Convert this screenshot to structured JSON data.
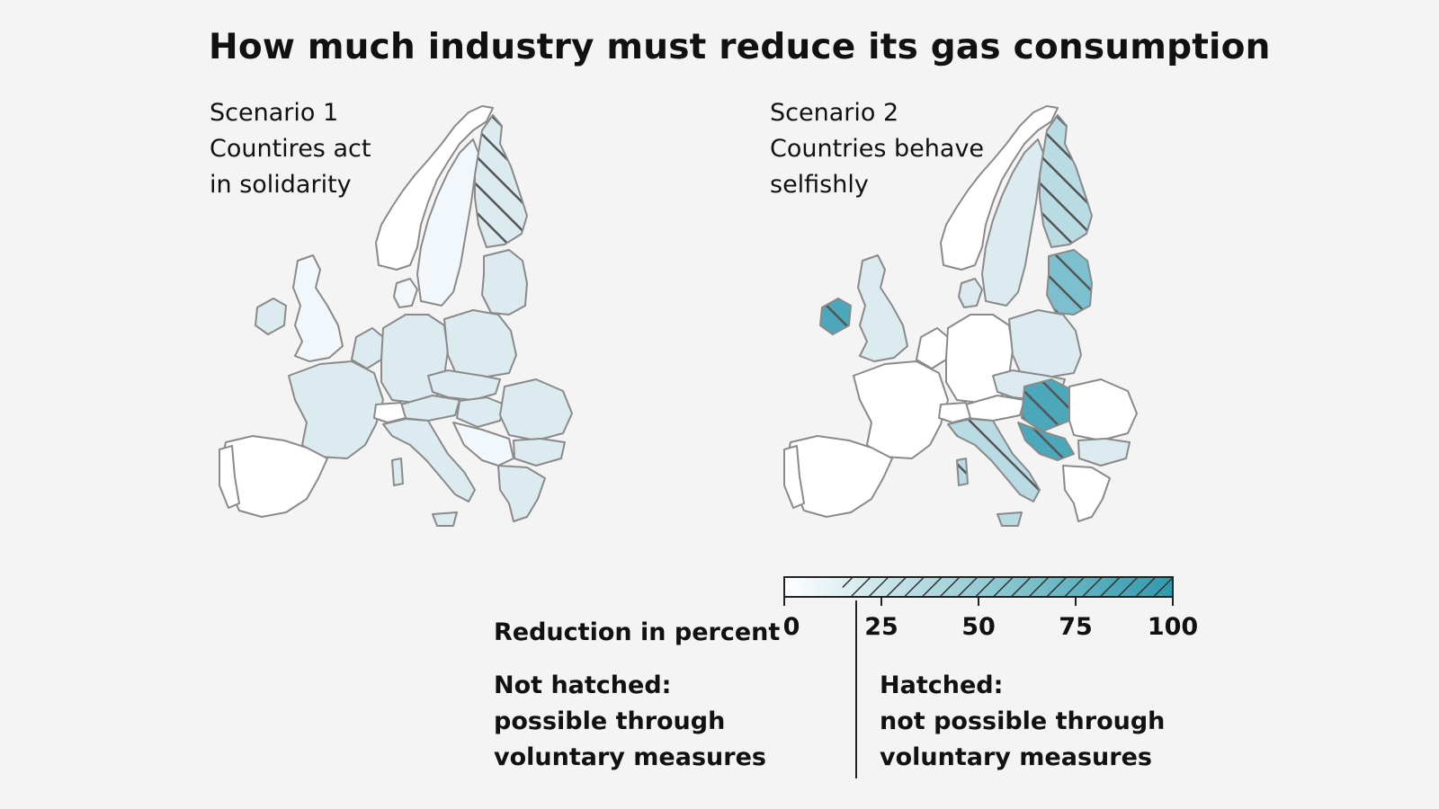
{
  "title": "How much industry must reduce its gas consumption",
  "scenario1": {
    "lines": [
      "Scenario 1",
      "Countires act",
      "in solidarity"
    ]
  },
  "scenario2": {
    "lines": [
      "Scenario 2",
      "Countries behave",
      "selfishly"
    ]
  },
  "legend": {
    "title": "Reduction in percent",
    "ticks": [
      "0",
      "25",
      "50",
      "75",
      "100"
    ],
    "hatch_threshold_percent": 15,
    "color_low": "#ffffff",
    "color_high": "#2e9aac",
    "left_note": [
      "Not hatched:",
      "possible through",
      "voluntary measures"
    ],
    "right_note": [
      "Hatched:",
      "not possible through",
      "voluntary measures"
    ]
  },
  "colors": {
    "background": "#f4f4f4",
    "border": "#8a8a8a",
    "hatch": "#555555",
    "light": "#dbebf0",
    "mid": "#b9dbe4",
    "strong": "#4aa8ba"
  }
}
